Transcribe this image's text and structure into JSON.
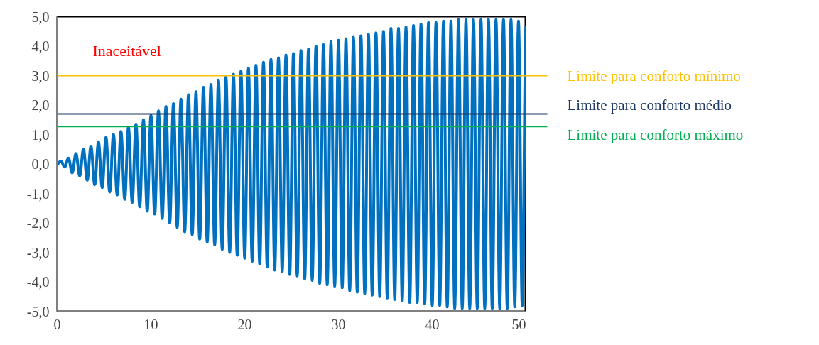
{
  "chart_data": {
    "type": "line",
    "x": [
      0,
      0.4,
      0.8,
      1.2,
      1.6,
      2.0,
      2.4,
      2.8,
      3.2,
      3.6,
      4.0,
      4.4,
      4.8,
      5.2,
      5.6,
      6.0,
      6.4,
      6.8,
      7.2,
      7.6,
      8.0,
      8.4,
      8.8,
      9.2,
      9.6,
      10.0,
      10.4,
      10.8,
      11.2,
      11.6,
      12.0,
      12.4,
      12.8,
      13.2,
      13.6,
      14.0,
      14.4,
      14.8,
      15.2,
      15.6,
      16.0,
      16.4,
      16.8,
      17.2,
      17.6,
      18.0,
      18.4,
      18.8,
      19.2,
      19.6,
      20.0,
      20.4,
      20.8,
      21.2,
      21.6,
      22.0,
      22.4,
      22.8,
      23.2,
      23.6,
      24.0,
      24.4,
      24.8,
      25.2,
      25.6,
      26.0,
      26.4,
      26.8,
      27.2,
      27.6,
      28.0,
      28.4,
      28.8,
      29.2,
      29.6,
      30.0,
      30.4,
      30.8,
      31.2,
      31.6,
      32.0,
      32.4,
      32.8,
      33.2,
      33.6,
      34.0,
      34.4,
      34.8,
      35.2,
      35.6,
      36.0,
      36.4,
      36.8,
      37.2,
      37.6,
      38.0,
      38.4,
      38.8,
      39.2,
      39.6,
      40.0,
      40.4,
      40.8,
      41.2,
      41.6,
      42.0,
      42.4,
      42.8,
      43.2,
      43.6,
      44.0,
      44.4,
      44.8,
      45.2,
      45.6,
      46.0,
      46.4,
      46.8,
      47.2,
      47.6,
      48.0,
      48.4,
      48.8,
      49.2,
      49.6,
      50.0
    ],
    "series": [
      {
        "color": "#0070c0",
        "values": [
          0,
          0.1,
          -0.1,
          0.2,
          -0.3,
          0.35,
          -0.4,
          0.5,
          -0.55,
          0.6,
          -0.7,
          0.75,
          -0.8,
          0.9,
          -0.95,
          1.0,
          -1.05,
          1.1,
          -1.2,
          1.25,
          -1.3,
          1.35,
          -1.45,
          1.5,
          -1.6,
          1.65,
          -1.7,
          1.8,
          -1.85,
          1.95,
          -2.0,
          2.05,
          -2.15,
          2.2,
          -2.3,
          2.35,
          -2.4,
          2.45,
          -2.55,
          2.6,
          -2.65,
          2.7,
          -2.75,
          2.85,
          -2.9,
          2.95,
          -3.0,
          3.05,
          -3.1,
          3.15,
          -3.2,
          3.25,
          -3.3,
          3.35,
          -3.4,
          3.45,
          -3.5,
          3.55,
          -3.6,
          3.6,
          -3.65,
          3.7,
          -3.75,
          3.75,
          -3.8,
          3.85,
          -3.9,
          3.9,
          -3.95,
          4.0,
          -4.05,
          4.05,
          -4.1,
          4.15,
          -4.15,
          4.2,
          -4.2,
          4.25,
          -4.3,
          4.3,
          -4.35,
          4.35,
          -4.4,
          4.4,
          -4.45,
          4.45,
          -4.5,
          4.5,
          -4.55,
          4.6,
          -4.6,
          4.6,
          -4.65,
          4.65,
          -4.7,
          4.7,
          -4.7,
          4.75,
          -4.75,
          4.8,
          -4.8,
          4.8,
          -4.8,
          4.85,
          -4.85,
          4.85,
          -4.9,
          4.9,
          -4.9,
          4.9,
          -4.9,
          4.9,
          -4.9,
          4.9,
          -4.9,
          4.9,
          -4.9,
          4.9,
          -4.9,
          4.9,
          -4.9,
          4.9,
          -4.85,
          4.85,
          -4.8,
          4.7
        ]
      }
    ],
    "xlim": [
      0,
      50
    ],
    "xticks": [
      0,
      10,
      20,
      30,
      40,
      50
    ],
    "ylim": [
      -5,
      5
    ],
    "yticks": [
      {
        "value": -5,
        "label": "-5,0"
      },
      {
        "value": -4,
        "label": "-4,0"
      },
      {
        "value": -3,
        "label": "-3,0"
      },
      {
        "value": -2,
        "label": "-2,0"
      },
      {
        "value": -1,
        "label": "-1,0"
      },
      {
        "value": 0,
        "label": "0,0"
      },
      {
        "value": 1,
        "label": "1,0"
      },
      {
        "value": 2,
        "label": "2,0"
      },
      {
        "value": 3,
        "label": "3,0"
      },
      {
        "value": 4,
        "label": "4,0"
      },
      {
        "value": 5,
        "label": "5,0"
      }
    ],
    "ref_lines": [
      {
        "axis": "y",
        "value": 3.0,
        "label": "Limite para conforto mínimo",
        "color": "#ffc000"
      },
      {
        "axis": "y",
        "value": 1.7,
        "label": "Limite para conforto médio",
        "color": "#1f3864"
      },
      {
        "axis": "y",
        "value": 1.27,
        "label": "Limite para conforto máximo",
        "color": "#00b050"
      }
    ],
    "annotations": [
      "Inaceitável"
    ],
    "grid": false,
    "marker": "none",
    "line_style": "solid"
  }
}
